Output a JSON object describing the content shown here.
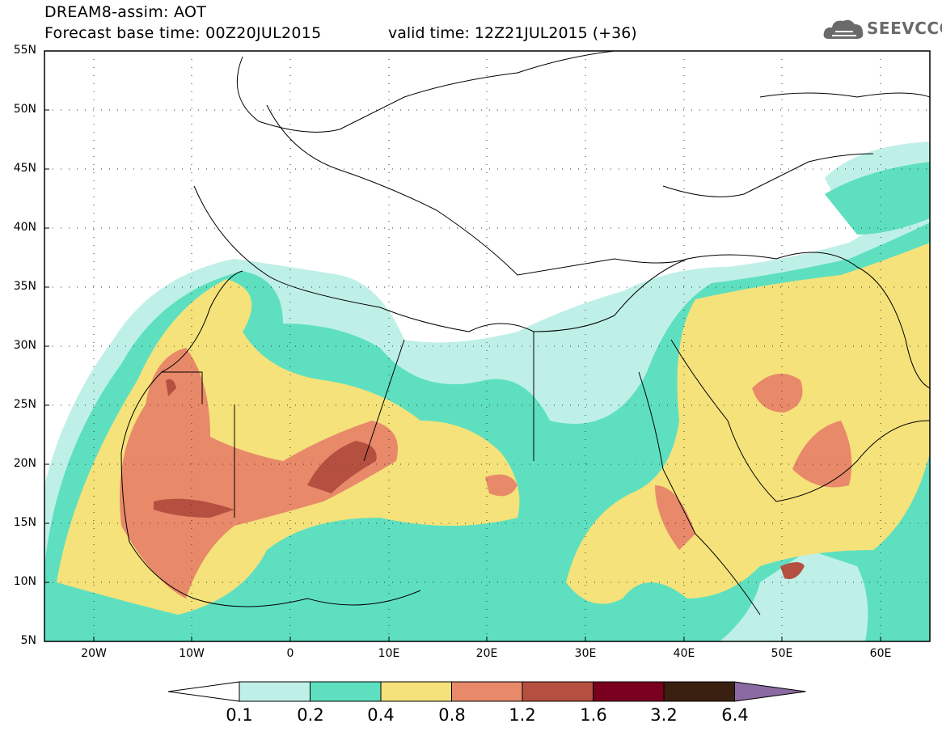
{
  "title": {
    "line1": "DREAM8-assim: AOT",
    "line2": "Forecast base time: 00Z20JUL2015",
    "valid": "valid time: 12Z21JUL2015 (+36)"
  },
  "logo": {
    "text": "SEEVCCC",
    "icon": "cloud-icon"
  },
  "map": {
    "lat_labels": [
      "55N",
      "50N",
      "45N",
      "40N",
      "35N",
      "30N",
      "25N",
      "20N",
      "15N",
      "10N",
      "5N"
    ],
    "lon_labels": [
      "20W",
      "10W",
      "0",
      "10E",
      "20E",
      "30E",
      "40E",
      "50E",
      "60E"
    ],
    "extent": {
      "lon": [
        -25,
        65
      ],
      "lat": [
        5,
        55
      ]
    },
    "grid": "dotted"
  },
  "colorbar": {
    "labels": [
      "0.1",
      "0.2",
      "0.4",
      "0.8",
      "1.2",
      "1.6",
      "3.2",
      "6.4"
    ],
    "colors": [
      "#ffffff",
      "#bff0e8",
      "#5ee0c0",
      "#f5e27a",
      "#e8896a",
      "#b55040",
      "#7a0020",
      "#3a2010",
      "#8a6aa0"
    ]
  }
}
